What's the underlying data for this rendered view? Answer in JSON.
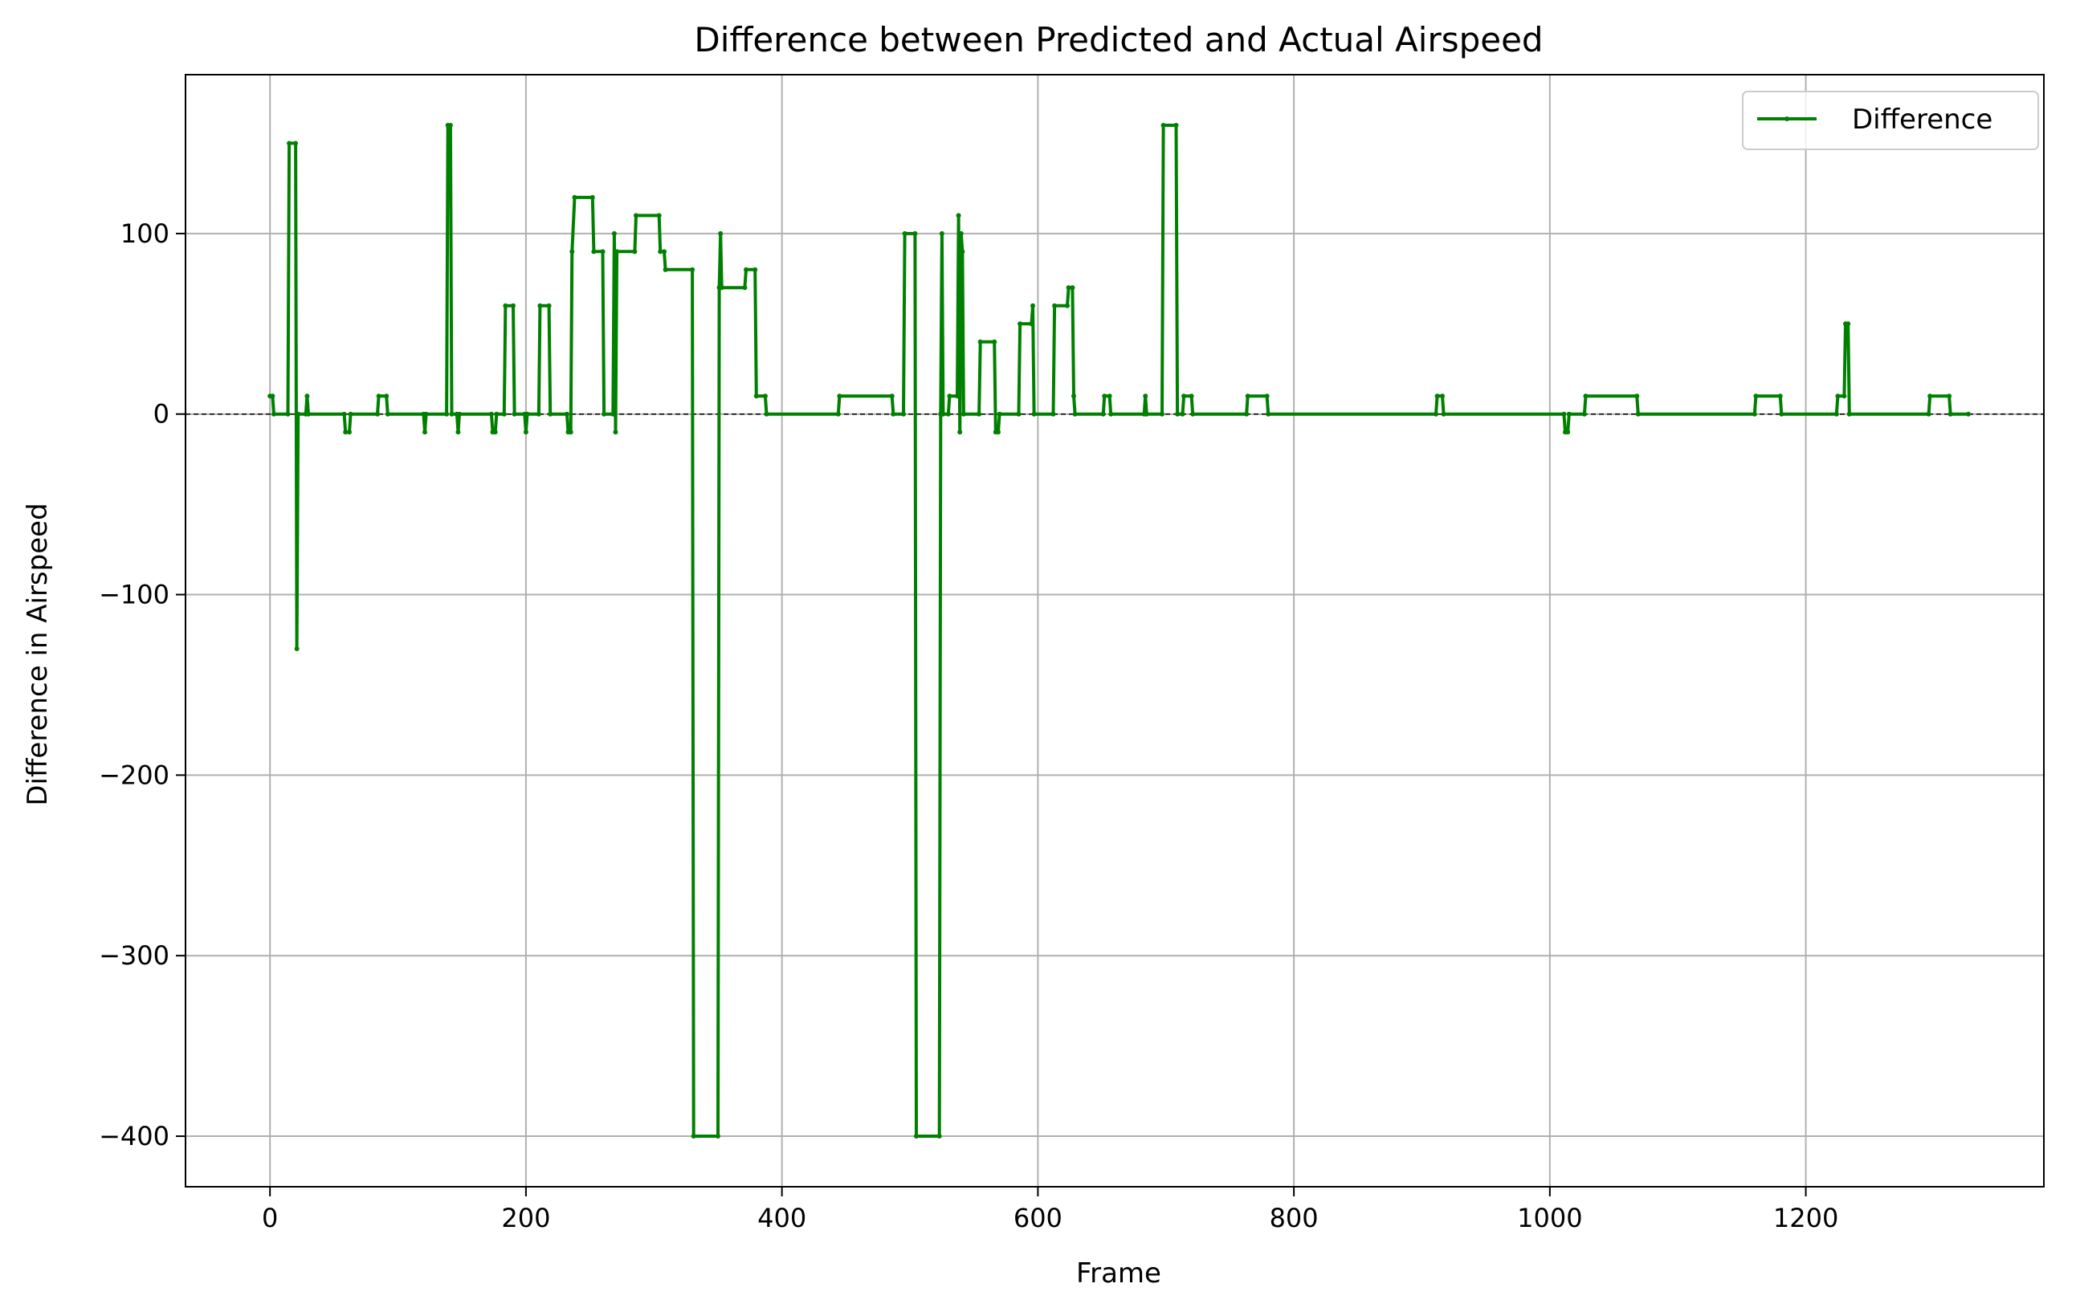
{
  "chart_data": {
    "type": "line",
    "title": "Difference between Predicted and Actual Airspeed",
    "xlabel": "Frame",
    "ylabel": "Difference in Airspeed",
    "xlim": [
      -66,
      1386
    ],
    "ylim": [
      -428,
      188
    ],
    "x_ticks": [
      0,
      200,
      400,
      600,
      800,
      1000,
      1200
    ],
    "y_ticks": [
      100,
      0,
      -100,
      -200,
      -300,
      -400
    ],
    "x_tick_labels": [
      "0",
      "200",
      "400",
      "600",
      "800",
      "1000",
      "1200"
    ],
    "y_tick_labels": [
      "100",
      "0",
      "−100",
      "−200",
      "−300",
      "−400"
    ],
    "grid": true,
    "zero_reference_line": true,
    "legend": {
      "position": "top-right",
      "entries": [
        "Difference"
      ]
    },
    "colors": {
      "series": "#008000",
      "grid": "#b0b0b0",
      "reference": "#000000"
    },
    "series": [
      {
        "name": "Difference",
        "points": [
          [
            0,
            10
          ],
          [
            2,
            10
          ],
          [
            3,
            0
          ],
          [
            14,
            0
          ],
          [
            15,
            150
          ],
          [
            20,
            150
          ],
          [
            21,
            -130
          ],
          [
            22,
            0
          ],
          [
            28,
            0
          ],
          [
            29,
            10
          ],
          [
            30,
            0
          ],
          [
            58,
            0
          ],
          [
            59,
            -10
          ],
          [
            62,
            -10
          ],
          [
            63,
            0
          ],
          [
            84,
            0
          ],
          [
            85,
            10
          ],
          [
            91,
            10
          ],
          [
            92,
            0
          ],
          [
            120,
            0
          ],
          [
            121,
            -10
          ],
          [
            122,
            0
          ],
          [
            138,
            0
          ],
          [
            139,
            160
          ],
          [
            141,
            160
          ],
          [
            142,
            0
          ],
          [
            146,
            0
          ],
          [
            147,
            -10
          ],
          [
            148,
            0
          ],
          [
            173,
            0
          ],
          [
            174,
            -10
          ],
          [
            176,
            -10
          ],
          [
            177,
            0
          ],
          [
            183,
            0
          ],
          [
            184,
            60
          ],
          [
            190,
            60
          ],
          [
            191,
            0
          ],
          [
            199,
            0
          ],
          [
            200,
            -10
          ],
          [
            201,
            0
          ],
          [
            210,
            0
          ],
          [
            211,
            60
          ],
          [
            218,
            60
          ],
          [
            219,
            0
          ],
          [
            232,
            0
          ],
          [
            233,
            -10
          ],
          [
            235,
            -10
          ],
          [
            236,
            90
          ],
          [
            238,
            120
          ],
          [
            252,
            120
          ],
          [
            253,
            90
          ],
          [
            260,
            90
          ],
          [
            261,
            0
          ],
          [
            268,
            0
          ],
          [
            269,
            100
          ],
          [
            270,
            -10
          ],
          [
            271,
            90
          ],
          [
            285,
            90
          ],
          [
            286,
            110
          ],
          [
            304,
            110
          ],
          [
            305,
            90
          ],
          [
            308,
            90
          ],
          [
            309,
            80
          ],
          [
            330,
            80
          ],
          [
            331,
            -400
          ],
          [
            350,
            -400
          ],
          [
            351,
            70
          ],
          [
            352,
            100
          ],
          [
            353,
            70
          ],
          [
            371,
            70
          ],
          [
            372,
            80
          ],
          [
            379,
            80
          ],
          [
            380,
            10
          ],
          [
            387,
            10
          ],
          [
            388,
            0
          ],
          [
            444,
            0
          ],
          [
            445,
            10
          ],
          [
            486,
            10
          ],
          [
            487,
            0
          ],
          [
            495,
            0
          ],
          [
            496,
            100
          ],
          [
            504,
            100
          ],
          [
            505,
            -400
          ],
          [
            523,
            -400
          ],
          [
            524,
            0
          ],
          [
            525,
            100
          ],
          [
            526,
            0
          ],
          [
            530,
            0
          ],
          [
            531,
            10
          ],
          [
            537,
            10
          ],
          [
            538,
            110
          ],
          [
            539,
            -10
          ],
          [
            540,
            100
          ],
          [
            541,
            90
          ],
          [
            542,
            0
          ],
          [
            554,
            0
          ],
          [
            555,
            40
          ],
          [
            566,
            40
          ],
          [
            567,
            -10
          ],
          [
            569,
            -10
          ],
          [
            570,
            0
          ],
          [
            585,
            0
          ],
          [
            586,
            50
          ],
          [
            595,
            50
          ],
          [
            596,
            60
          ],
          [
            597,
            0
          ],
          [
            612,
            0
          ],
          [
            613,
            60
          ],
          [
            623,
            60
          ],
          [
            624,
            70
          ],
          [
            627,
            70
          ],
          [
            628,
            10
          ],
          [
            629,
            0
          ],
          [
            651,
            0
          ],
          [
            652,
            10
          ],
          [
            656,
            10
          ],
          [
            657,
            0
          ],
          [
            683,
            0
          ],
          [
            684,
            10
          ],
          [
            685,
            0
          ],
          [
            697,
            0
          ],
          [
            698,
            160
          ],
          [
            708,
            160
          ],
          [
            709,
            0
          ],
          [
            713,
            0
          ],
          [
            714,
            10
          ],
          [
            720,
            10
          ],
          [
            721,
            0
          ],
          [
            763,
            0
          ],
          [
            764,
            10
          ],
          [
            779,
            10
          ],
          [
            780,
            0
          ],
          [
            911,
            0
          ],
          [
            912,
            10
          ],
          [
            916,
            10
          ],
          [
            917,
            0
          ],
          [
            1011,
            0
          ],
          [
            1012,
            -10
          ],
          [
            1014,
            -10
          ],
          [
            1015,
            0
          ],
          [
            1027,
            0
          ],
          [
            1028,
            10
          ],
          [
            1068,
            10
          ],
          [
            1069,
            0
          ],
          [
            1160,
            0
          ],
          [
            1161,
            10
          ],
          [
            1180,
            10
          ],
          [
            1181,
            0
          ],
          [
            1224,
            0
          ],
          [
            1225,
            10
          ],
          [
            1230,
            10
          ],
          [
            1231,
            50
          ],
          [
            1233,
            50
          ],
          [
            1234,
            0
          ],
          [
            1296,
            0
          ],
          [
            1297,
            10
          ],
          [
            1312,
            10
          ],
          [
            1313,
            0
          ],
          [
            1327,
            0
          ]
        ]
      }
    ]
  }
}
